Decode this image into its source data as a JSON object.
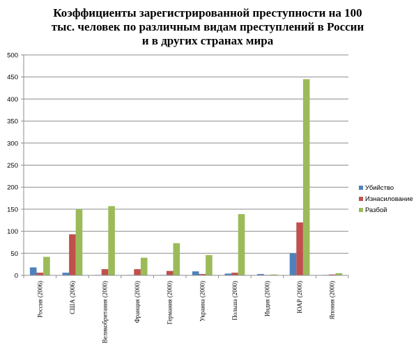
{
  "chart_data": {
    "type": "bar",
    "title_lines": [
      "Коэффициенты зарегистрированной преступности на 100",
      "тыс. человек по различным видам преступлений в России",
      "и в других странах мира"
    ],
    "categories": [
      "Россия (2006)",
      "США (2006)",
      "Великобритания (2000)",
      "Франция (2000)",
      "Германия (2000)",
      "Украина (2000)",
      "Польша (2000)",
      "Индия (2000)",
      "ЮАР (2000)",
      "Япония (2000)"
    ],
    "series": [
      {
        "name": "Убийство",
        "color": "#4F81BD",
        "values": [
          18,
          6,
          1,
          1,
          1,
          9,
          4,
          3,
          50,
          1
        ]
      },
      {
        "name": "Изнасилование",
        "color": "#C0504D",
        "values": [
          6,
          93,
          14,
          14,
          10,
          3,
          6,
          1,
          120,
          2
        ]
      },
      {
        "name": "Разбой",
        "color": "#9BBB59",
        "values": [
          42,
          150,
          157,
          40,
          73,
          46,
          139,
          2,
          445,
          5
        ]
      }
    ],
    "ylim": [
      0,
      500
    ],
    "yticks": [
      0,
      50,
      100,
      150,
      200,
      250,
      300,
      350,
      400,
      450,
      500
    ],
    "grid": true,
    "legend_position": "right"
  }
}
